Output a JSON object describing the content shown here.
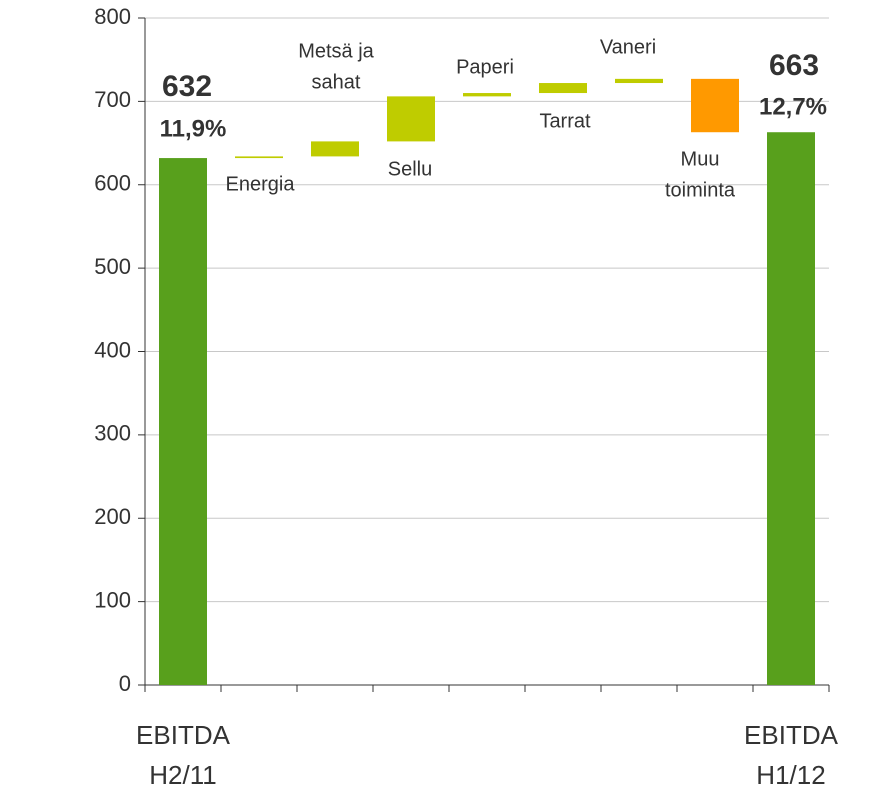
{
  "chart_data": {
    "type": "waterfall",
    "categories": [
      [
        "EBITDA",
        "H2/11"
      ],
      "Energia",
      [
        "Metsä ja",
        "sahat"
      ],
      "Sellu",
      "Paperi",
      "Tarrat",
      "Vaneri",
      [
        "Muu",
        "toiminta"
      ],
      [
        "EBITDA",
        "H1/12"
      ]
    ],
    "measure": [
      "absolute",
      "relative",
      "relative",
      "relative",
      "relative",
      "relative",
      "relative",
      "relative",
      "absolute"
    ],
    "values": [
      632,
      2,
      18,
      54,
      4,
      12,
      5,
      -64,
      663
    ],
    "margins": [
      "11,9%",
      null,
      null,
      null,
      null,
      null,
      null,
      null,
      "12,7%"
    ],
    "colors": {
      "absolute": "#58a01c",
      "increase": "#bfcc00",
      "decrease": "#ff9900"
    },
    "ylim": [
      0,
      800
    ],
    "yticks": [
      0,
      100,
      200,
      300,
      400,
      500,
      600,
      700,
      800
    ],
    "grid": true
  }
}
